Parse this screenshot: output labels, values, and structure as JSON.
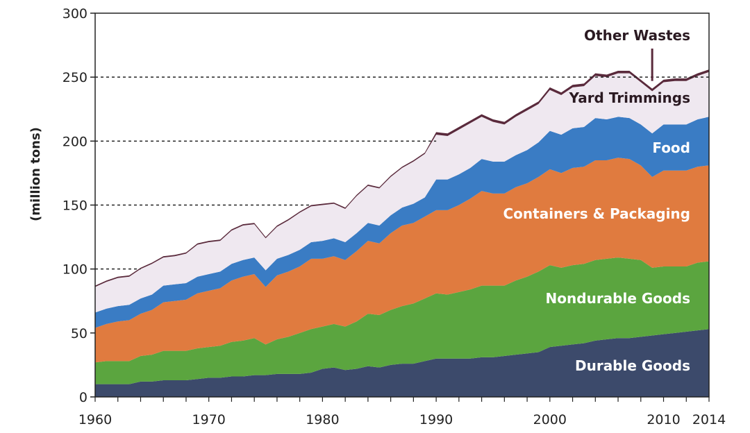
{
  "chart_data": {
    "type": "area",
    "stacked": true,
    "ylabel": "(million tons)",
    "xlim": [
      1960,
      2014
    ],
    "ylim": [
      0,
      300
    ],
    "x_ticks": [
      "1960",
      "1970",
      "1980",
      "1990",
      "2000",
      "2010",
      "2014"
    ],
    "y_ticks": [
      "0",
      "50",
      "100",
      "150",
      "200",
      "250",
      "300"
    ],
    "reference_lines": [
      100,
      150,
      200,
      250
    ],
    "grid": false,
    "legend": "labels placed inside areas on the right",
    "x": [
      1960,
      1961,
      1962,
      1963,
      1964,
      1965,
      1966,
      1967,
      1968,
      1969,
      1970,
      1971,
      1972,
      1973,
      1974,
      1975,
      1976,
      1977,
      1978,
      1979,
      1980,
      1981,
      1982,
      1983,
      1984,
      1985,
      1986,
      1987,
      1988,
      1989,
      1990,
      1991,
      1992,
      1993,
      1994,
      1995,
      1996,
      1997,
      1998,
      1999,
      2000,
      2001,
      2002,
      2003,
      2004,
      2005,
      2006,
      2007,
      2008,
      2009,
      2010,
      2011,
      2012,
      2013,
      2014
    ],
    "series": [
      {
        "name": "Durable Goods",
        "color": "#3c4a6b",
        "values": [
          10,
          10,
          10,
          10,
          12,
          12,
          13,
          13,
          13,
          14,
          15,
          15,
          16,
          16,
          17,
          17,
          18,
          18,
          18,
          19,
          22,
          23,
          21,
          22,
          24,
          23,
          25,
          26,
          26,
          28,
          30,
          30,
          30,
          30,
          31,
          31,
          32,
          33,
          34,
          35,
          39,
          40,
          41,
          42,
          44,
          45,
          46,
          46,
          47,
          48,
          49,
          50,
          51,
          52,
          53
        ]
      },
      {
        "name": "Nondurable Goods",
        "color": "#5ba53f",
        "values": [
          17,
          18,
          18,
          18,
          20,
          21,
          23,
          23,
          23,
          24,
          24,
          25,
          27,
          28,
          29,
          24,
          27,
          29,
          32,
          34,
          33,
          34,
          34,
          37,
          41,
          41,
          43,
          45,
          47,
          49,
          51,
          50,
          52,
          54,
          56,
          56,
          55,
          58,
          60,
          63,
          64,
          61,
          62,
          62,
          63,
          63,
          63,
          62,
          60,
          53,
          53,
          52,
          51,
          53,
          53
        ]
      },
      {
        "name": "Containers & Packaging",
        "color": "#e07b3f",
        "values": [
          27,
          29,
          31,
          32,
          33,
          35,
          38,
          39,
          40,
          43,
          44,
          45,
          48,
          50,
          50,
          45,
          50,
          51,
          52,
          55,
          53,
          53,
          52,
          55,
          57,
          56,
          60,
          63,
          63,
          64,
          65,
          66,
          68,
          71,
          74,
          72,
          72,
          73,
          73,
          74,
          75,
          74,
          76,
          76,
          78,
          77,
          78,
          78,
          74,
          71,
          75,
          75,
          75,
          75,
          75
        ]
      },
      {
        "name": "Food",
        "color": "#3a7cc4",
        "values": [
          12,
          12,
          12,
          12,
          12,
          12,
          13,
          13,
          13,
          13,
          13,
          13,
          13,
          13,
          13,
          13,
          13,
          13,
          13,
          13,
          14,
          14,
          14,
          14,
          14,
          14,
          14,
          14,
          15,
          15,
          24,
          24,
          24,
          24,
          25,
          25,
          25,
          25,
          26,
          27,
          30,
          30,
          31,
          31,
          33,
          32,
          32,
          32,
          32,
          34,
          36,
          36,
          36,
          37,
          38
        ]
      },
      {
        "name": "Yard Trimmings",
        "color": "#efe8f0",
        "values": [
          20,
          21,
          22,
          22,
          23,
          24,
          22,
          22,
          23,
          25,
          25,
          24,
          26,
          27,
          26,
          25,
          25,
          27,
          29,
          28,
          28,
          27,
          26,
          29,
          29,
          29,
          30,
          31,
          33,
          34,
          35,
          34,
          35,
          35,
          33,
          31,
          29,
          30,
          31,
          30,
          32,
          31,
          32,
          32,
          33,
          33,
          34,
          35,
          33,
          33,
          33,
          34,
          34,
          34,
          35
        ]
      },
      {
        "name": "Other Wastes",
        "color": "#5a2a3c",
        "values": [
          1,
          1,
          1,
          1,
          1,
          1,
          1,
          1,
          1,
          1,
          1,
          1,
          1,
          1,
          1,
          1,
          1,
          1,
          1,
          1,
          1,
          1,
          1,
          1,
          1,
          1,
          1,
          1,
          1,
          1,
          2,
          2,
          2,
          2,
          2,
          2,
          2,
          2,
          2,
          2,
          2,
          2,
          2,
          2,
          2,
          2,
          2,
          2,
          2,
          2,
          2,
          2,
          2,
          2,
          2
        ]
      }
    ]
  }
}
